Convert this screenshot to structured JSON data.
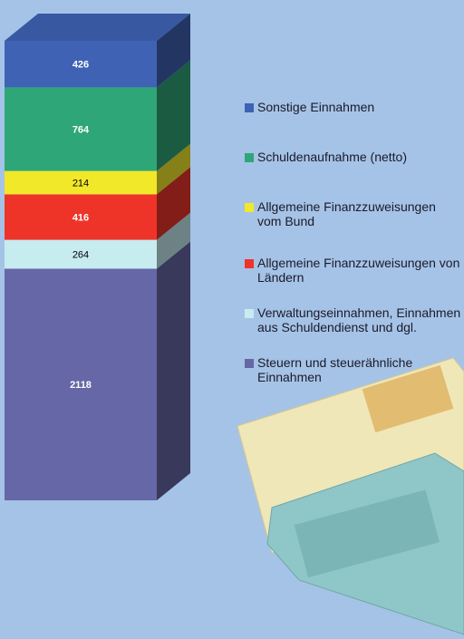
{
  "chart_data": {
    "type": "stacked-bar",
    "series": [
      {
        "name": "Steuern und steuerähnliche Einnahmen",
        "color": "#6667a6",
        "values": [
          2118
        ]
      },
      {
        "name": "Verwaltungseinnahmen, Einnahmen aus Schuldendienst und dgl.",
        "color": "#c6ecf0",
        "values": [
          264
        ]
      },
      {
        "name": "Allgemeine Finanzzuweisungen von Ländern",
        "color": "#ee3429",
        "values": [
          416
        ]
      },
      {
        "name": "Allgemeine Finanzzuweisungen vom Bund",
        "color": "#f2e82a",
        "values": [
          214
        ]
      },
      {
        "name": "Schuldenaufnahme (netto)",
        "color": "#2fa678",
        "values": [
          764
        ]
      },
      {
        "name": "Sonstige Einnahmen",
        "color": "#3f62b4",
        "values": [
          426
        ]
      }
    ]
  }
}
